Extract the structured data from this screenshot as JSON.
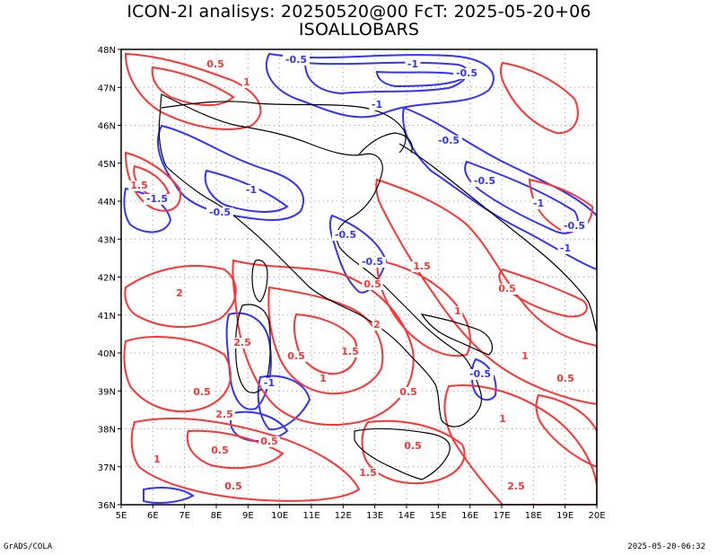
{
  "title": {
    "line1": "ICON-2I analisys: 20250520@00 FcT: 2025-05-20+06",
    "line2": "ISOALLOBARS"
  },
  "map": {
    "lon_range": [
      5,
      20
    ],
    "lat_range": [
      36,
      48
    ],
    "lon_labels": [
      "5E",
      "6E",
      "7E",
      "8E",
      "9E",
      "10E",
      "11E",
      "12E",
      "13E",
      "14E",
      "15E",
      "16E",
      "17E",
      "18E",
      "19E",
      "20E"
    ],
    "lat_labels": [
      "36N",
      "37N",
      "38N",
      "39N",
      "40N",
      "41N",
      "42N",
      "43N",
      "44N",
      "45N",
      "46N",
      "47N",
      "48N"
    ],
    "grid": "dotted",
    "colors": {
      "positive_contour": "#ff3333",
      "negative_contour": "#3333ff",
      "coastline": "#000000",
      "grid": "#999999"
    },
    "contour_labels_positive": [
      "0.5",
      "1",
      "1.5",
      "2",
      "2.5",
      "0.5",
      "1",
      "1.5",
      "0.5",
      "2.5",
      "0.5",
      "1",
      "0.5",
      "1.5",
      "1",
      "0.5",
      "0.5",
      "0.5",
      "1",
      "2.5",
      "1.5",
      "0.5",
      "1",
      "0.5",
      "2",
      "0.5"
    ],
    "contour_labels_negative": [
      "-0.5",
      "-1",
      "-0.5",
      "-1",
      "-0.5",
      "-0.5",
      "-1",
      "-0.5",
      "-1",
      "-1.5",
      "-0.5",
      "-1",
      "-0.5",
      "-1",
      "-0.5",
      "-0.5"
    ]
  },
  "footer": {
    "left": "GrADS/COLA",
    "right": "2025-05-20-06:32"
  }
}
